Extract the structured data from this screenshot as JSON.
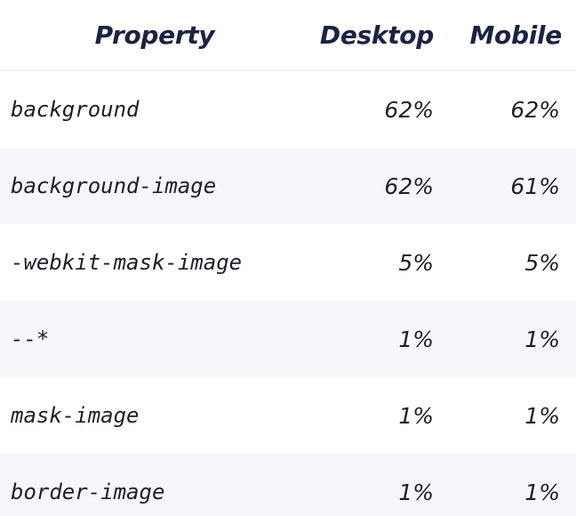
{
  "table": {
    "headers": {
      "property": "Property",
      "desktop": "Desktop",
      "mobile": "Mobile"
    },
    "rows": [
      {
        "property": "background",
        "desktop": "62%",
        "mobile": "62%"
      },
      {
        "property": "background-image",
        "desktop": "62%",
        "mobile": "61%"
      },
      {
        "property": "-webkit-mask-image",
        "desktop": "5%",
        "mobile": "5%"
      },
      {
        "property": "--*",
        "desktop": "1%",
        "mobile": "1%"
      },
      {
        "property": "mask-image",
        "desktop": "1%",
        "mobile": "1%"
      },
      {
        "property": "border-image",
        "desktop": "1%",
        "mobile": "1%"
      }
    ]
  }
}
